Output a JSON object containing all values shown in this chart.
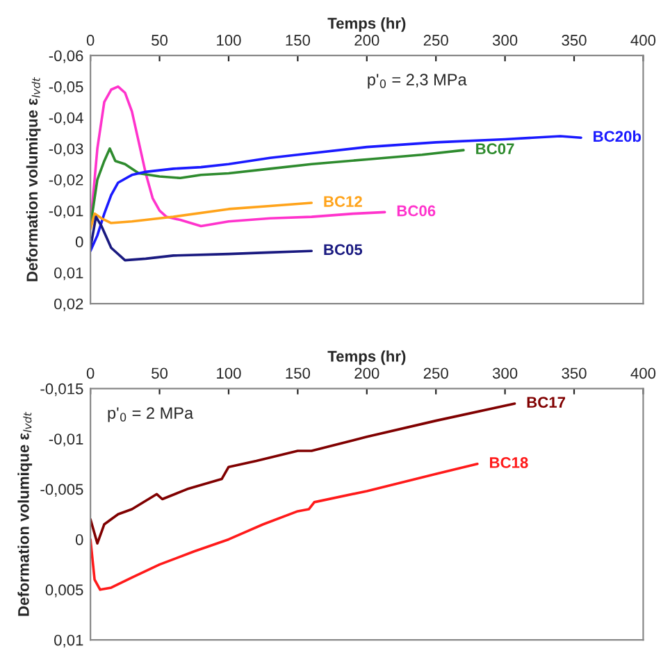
{
  "chart_data": [
    {
      "type": "line",
      "xlabel": "Temps (hr)",
      "ylabel": "Deformation volumique ε$_{lvdt}$",
      "annotations": [
        "p'$_{0}$ = 2,3 MPa"
      ],
      "xlim": [
        0,
        400
      ],
      "xticks": [
        0,
        50,
        100,
        150,
        200,
        250,
        300,
        350,
        400
      ],
      "ylim": [
        0.02,
        -0.06
      ],
      "yticks": [
        {
          "value": -0.06,
          "label": "-0,06"
        },
        {
          "value": -0.05,
          "label": "-0,05"
        },
        {
          "value": -0.04,
          "label": "-0,04"
        },
        {
          "value": -0.03,
          "label": "-0,03"
        },
        {
          "value": -0.02,
          "label": "-0,02"
        },
        {
          "value": -0.01,
          "label": "-0,01"
        },
        0,
        {
          "value": 0.01,
          "label": "0,01"
        },
        {
          "value": 0.02,
          "label": "0,02"
        }
      ],
      "grid": false,
      "legend": false,
      "marker": "none",
      "line_style": "solid",
      "series": [
        {
          "name": "BC06",
          "color": "#ff33cc",
          "x": [
            0,
            5,
            10,
            15,
            20,
            25,
            30,
            35,
            40,
            45,
            50,
            55,
            65,
            80,
            100,
            130,
            160,
            190,
            213
          ],
          "values": [
            -0.005,
            -0.03,
            -0.045,
            -0.049,
            -0.05,
            -0.048,
            -0.042,
            -0.032,
            -0.022,
            -0.014,
            -0.01,
            -0.008,
            -0.007,
            -0.005,
            -0.0065,
            -0.0075,
            -0.008,
            -0.009,
            -0.0095
          ]
        },
        {
          "name": "BC07",
          "color": "#2e8b2e",
          "x": [
            0,
            5,
            10,
            14,
            18,
            25,
            35,
            50,
            65,
            80,
            100,
            130,
            160,
            200,
            240,
            270
          ],
          "values": [
            -0.005,
            -0.02,
            -0.026,
            -0.03,
            -0.026,
            -0.025,
            -0.022,
            -0.021,
            -0.0205,
            -0.0215,
            -0.022,
            -0.0235,
            -0.025,
            -0.0265,
            -0.028,
            -0.0295
          ]
        },
        {
          "name": "BC20b",
          "color": "#1a1aff",
          "x": [
            0,
            5,
            10,
            15,
            20,
            30,
            40,
            60,
            80,
            100,
            130,
            150,
            200,
            250,
            300,
            340,
            355
          ],
          "values": [
            0.003,
            -0.002,
            -0.009,
            -0.015,
            -0.019,
            -0.0215,
            -0.0225,
            -0.0235,
            -0.024,
            -0.025,
            -0.027,
            -0.028,
            -0.0305,
            -0.032,
            -0.033,
            -0.034,
            -0.0335
          ]
        },
        {
          "name": "BC12",
          "color": "#ffa31a",
          "x": [
            0,
            3,
            8,
            15,
            30,
            60,
            100,
            130,
            160
          ],
          "values": [
            -0.004,
            -0.009,
            -0.0075,
            -0.006,
            -0.0065,
            -0.008,
            -0.0105,
            -0.0115,
            -0.0125
          ]
        },
        {
          "name": "BC05",
          "color": "#1a1a80",
          "x": [
            0,
            4,
            8,
            15,
            25,
            40,
            60,
            100,
            130,
            160
          ],
          "values": [
            0.002,
            -0.008,
            -0.005,
            0.002,
            0.006,
            0.0055,
            0.0045,
            0.004,
            0.0035,
            0.003
          ]
        }
      ]
    },
    {
      "type": "line",
      "xlabel": "Temps (hr)",
      "ylabel": "Deformation volumique ε$_{lvdt}$",
      "annotations": [
        "p'$_{0}$ = 2 MPa"
      ],
      "xlim": [
        0,
        400
      ],
      "xticks": [
        0,
        50,
        100,
        150,
        200,
        250,
        300,
        350,
        400
      ],
      "ylim": [
        0.01,
        -0.015
      ],
      "yticks": [
        {
          "value": -0.015,
          "label": "-0,015"
        },
        {
          "value": -0.01,
          "label": "-0,01"
        },
        {
          "value": -0.005,
          "label": "-0,005"
        },
        0,
        {
          "value": 0.005,
          "label": "0,005"
        },
        {
          "value": 0.01,
          "label": "0,01"
        }
      ],
      "grid": false,
      "legend": false,
      "marker": "none",
      "line_style": "solid",
      "series": [
        {
          "name": "BC17",
          "color": "#800000",
          "x": [
            0,
            5,
            10,
            20,
            30,
            48,
            52,
            70,
            95,
            100,
            120,
            150,
            160,
            200,
            250,
            300,
            307
          ],
          "values": [
            -0.002,
            0.0004,
            -0.0015,
            -0.0025,
            -0.003,
            -0.0045,
            -0.004,
            -0.005,
            -0.006,
            -0.0072,
            -0.0078,
            -0.0088,
            -0.0088,
            -0.0102,
            -0.0118,
            -0.0133,
            -0.0135
          ]
        },
        {
          "name": "BC18",
          "color": "#ff1a1a",
          "x": [
            0,
            3,
            7,
            15,
            30,
            50,
            75,
            100,
            125,
            150,
            158,
            162,
            200,
            250,
            280
          ],
          "values": [
            0,
            0.004,
            0.005,
            0.0048,
            0.0038,
            0.0025,
            0.0012,
            0,
            -0.0015,
            -0.0028,
            -0.003,
            -0.0037,
            -0.0048,
            -0.0065,
            -0.0075
          ]
        }
      ]
    }
  ]
}
